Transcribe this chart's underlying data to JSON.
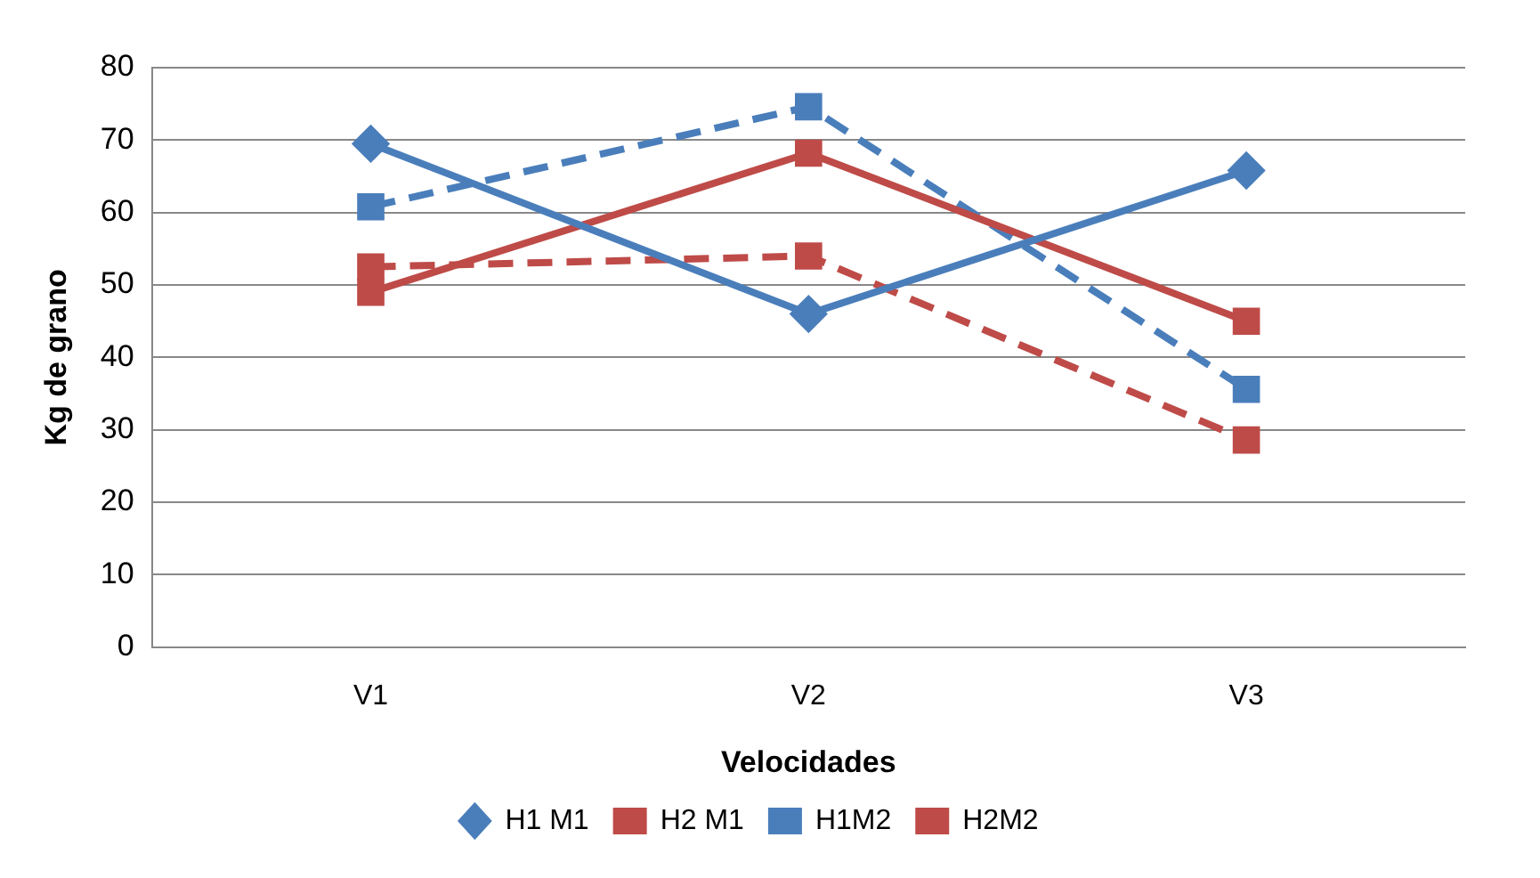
{
  "chart_data": {
    "type": "line",
    "xlabel": "Velocidades",
    "ylabel": "Kg de grano",
    "categories": [
      "V1",
      "V2",
      "V3"
    ],
    "series": [
      {
        "name": "H1 M1",
        "color": "#4a7ebb",
        "values": [
          69.5,
          46,
          65.8
        ],
        "marker": "diamond",
        "line_style": "solid"
      },
      {
        "name": "H2 M1",
        "color": "#be4b48",
        "values": [
          49,
          68.2,
          45
        ],
        "marker": "square",
        "line_style": "solid"
      },
      {
        "name": "H1M2",
        "color": "#4a7ebb",
        "values": [
          60.8,
          74.6,
          35.6
        ],
        "marker": "square",
        "line_style": "dashed"
      },
      {
        "name": "H2M2",
        "color": "#be4b48",
        "values": [
          52.5,
          54,
          28.6
        ],
        "marker": "square",
        "line_style": "dashed"
      }
    ],
    "ylim": [
      0,
      80
    ],
    "yticks": [
      0,
      10,
      20,
      30,
      40,
      50,
      60,
      70,
      80
    ],
    "grid": "y",
    "legend": "bottom"
  }
}
